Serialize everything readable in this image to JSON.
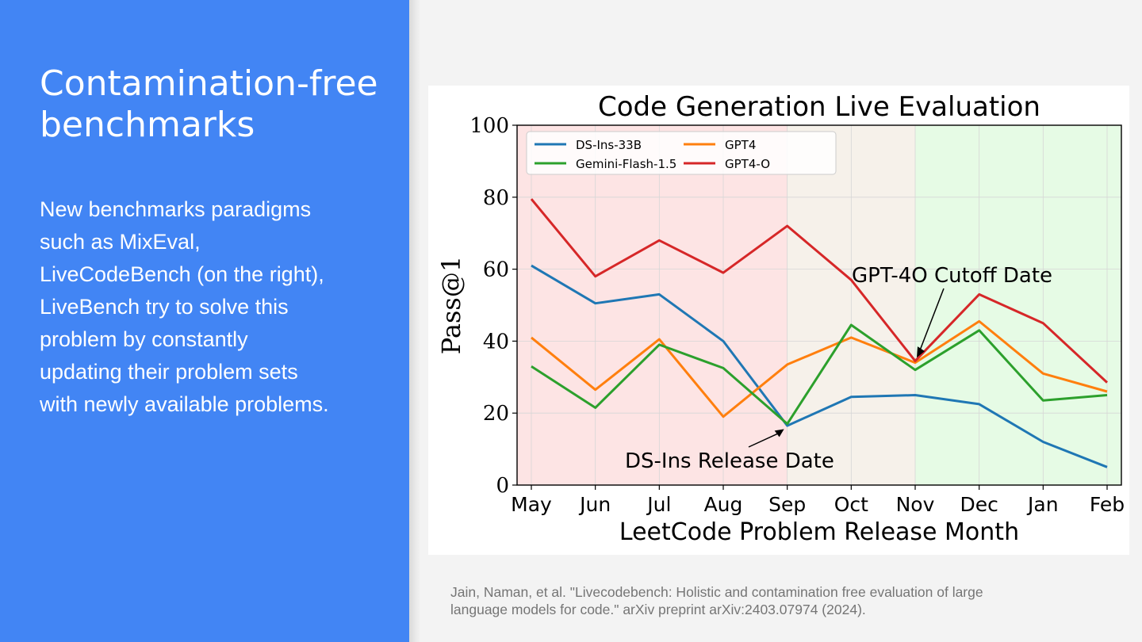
{
  "slide": {
    "title_lines": [
      "Contamination-free",
      "benchmarks"
    ],
    "body_lines": [
      "New benchmarks paradigms",
      "such as MixEval,",
      "LiveCodeBench (on the right),",
      "LiveBench try to solve this",
      "problem by constantly",
      "updating their problem sets",
      "with newly available problems."
    ],
    "citation_lines": [
      "Jain, Naman, et al. \"Livecodebench: Holistic and contamination free evaluation of large",
      "language models for code.\" arXiv preprint arXiv:2403.07974 (2024)."
    ],
    "colors": {
      "left_panel": "#4285f4",
      "text_on_panel": "#ffffff",
      "citation": "#757575"
    }
  },
  "chart_data": {
    "type": "line",
    "title": "Code Generation Live Evaluation",
    "xlabel": "LeetCode Problem Release Month",
    "ylabel": "Pass@1",
    "categories": [
      "May",
      "Jun",
      "Jul",
      "Aug",
      "Sep",
      "Oct",
      "Nov",
      "Dec",
      "Jan",
      "Feb"
    ],
    "ylim": [
      0,
      100
    ],
    "yticks": [
      0,
      20,
      40,
      60,
      80,
      100
    ],
    "grid": true,
    "legend_placement": "top-left",
    "series": [
      {
        "name": "DS-Ins-33B",
        "color": "#1f77b4",
        "values": [
          61,
          50.5,
          53,
          40,
          16.5,
          24.5,
          25,
          22.5,
          12,
          5
        ]
      },
      {
        "name": "GPT4",
        "color": "#ff7f0e",
        "values": [
          41,
          26.5,
          40.5,
          19,
          33.5,
          41,
          34,
          45.5,
          31,
          26
        ]
      },
      {
        "name": "Gemini-Flash-1.5",
        "color": "#2ca02c",
        "values": [
          33,
          21.5,
          39,
          32.5,
          17,
          44.5,
          32,
          43,
          23.5,
          25
        ]
      },
      {
        "name": "GPT4-O",
        "color": "#d62728",
        "values": [
          79.5,
          58,
          68,
          59,
          72,
          57,
          34.5,
          53,
          45,
          28.5
        ]
      }
    ],
    "shaded_regions": [
      {
        "from": "May",
        "to": "Sep",
        "color": "#fde4e4"
      },
      {
        "from": "Sep",
        "to": "Nov",
        "color": "#f6f1ea"
      },
      {
        "from": "Nov",
        "to": "Feb",
        "color": "#e6fbe5"
      }
    ],
    "annotations": [
      {
        "text": "GPT-4O Cutoff Date",
        "x": "Nov",
        "y": 35
      },
      {
        "text": "DS-Ins Release Date",
        "x": "Sep",
        "y": 16
      }
    ]
  }
}
